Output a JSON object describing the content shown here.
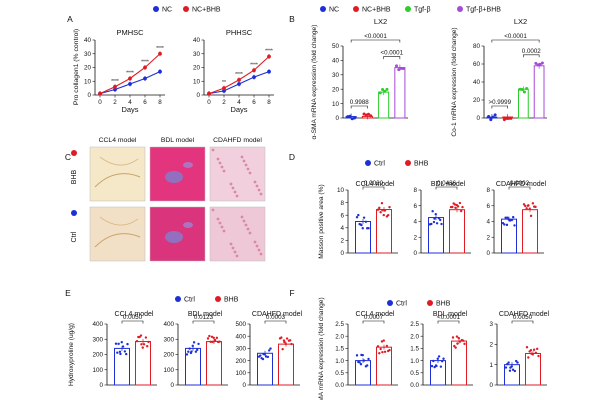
{
  "colors": {
    "blue": "#1d2fd6",
    "red": "#e01b24",
    "green": "#2ecc2e",
    "purple": "#a64bd6",
    "text": "#111111"
  },
  "chart_data": [
    {
      "panel": "A",
      "type": "line",
      "legend": [
        "NC",
        "NC+BHB"
      ],
      "charts": [
        {
          "title": "PMHSC",
          "ylabel": "Pro collagen1 (% control)",
          "xlabel": "Days",
          "x": [
            0,
            2,
            4,
            6,
            8
          ],
          "xticks": [
            0,
            2,
            4,
            6,
            8
          ],
          "ylim": [
            0,
            40
          ],
          "yticks": [
            0,
            10,
            20,
            30,
            40
          ],
          "series": [
            {
              "name": "NC",
              "values": [
                1,
                4,
                8,
                12,
                17
              ]
            },
            {
              "name": "NC+BHB",
              "values": [
                1,
                6,
                12,
                20,
                30
              ]
            }
          ],
          "annotations": [
            "****",
            "****",
            "****",
            "****"
          ]
        },
        {
          "title": "PHHSC",
          "ylabel": "",
          "xlabel": "Days",
          "x": [
            0,
            2,
            4,
            6,
            8
          ],
          "xticks": [
            0,
            2,
            4,
            6,
            8
          ],
          "ylim": [
            0,
            40
          ],
          "yticks": [
            0,
            10,
            20,
            30,
            40
          ],
          "series": [
            {
              "name": "NC",
              "values": [
                1,
                3,
                8,
                13,
                17
              ]
            },
            {
              "name": "NC+BHB",
              "values": [
                1,
                5,
                11,
                18,
                28
              ]
            }
          ],
          "annotations": [
            "**",
            "****",
            "****",
            "****"
          ]
        }
      ]
    },
    {
      "panel": "B",
      "type": "bar",
      "super_title": "LX2",
      "legend": [
        "NC",
        "NC+BHB",
        "Tgf-β",
        "Tgf-β+BHB"
      ],
      "charts": [
        {
          "title": "LX2",
          "ylabel": "α-SMA mRNA expression (fold change)",
          "ylim": [
            0,
            50
          ],
          "yticks": [
            0,
            10,
            20,
            30,
            40,
            50
          ],
          "categories": [
            "NC",
            "NC+BHB",
            "Tgf-β",
            "Tgf-β+BHB"
          ],
          "values": [
            1.0,
            1.1,
            18,
            35
          ],
          "pvalues": [
            "<0.0001",
            "0.9988",
            "<0.0001"
          ]
        },
        {
          "title": "LX2",
          "ylabel": "Co-1 mRNA expression (fold change)",
          "ylim": [
            0,
            80
          ],
          "yticks": [
            0,
            20,
            40,
            60,
            80
          ],
          "categories": [
            "NC",
            "NC+BHB",
            "Tgf-β",
            "Tgf-β+BHB"
          ],
          "values": [
            1.0,
            1.1,
            32,
            58
          ],
          "pvalues": [
            "<0.0001",
            ">0.9999",
            "0.0002"
          ]
        }
      ]
    },
    {
      "panel": "D",
      "type": "bar",
      "legend": [
        "Ctrl",
        "BHB"
      ],
      "ylabel": "Masson positive area (%)",
      "charts": [
        {
          "title": "CCL4 model",
          "ylim": [
            0,
            10
          ],
          "yticks": [
            0,
            2,
            4,
            6,
            8,
            10
          ],
          "categories": [
            "Ctrl",
            "BHB"
          ],
          "values": [
            5.0,
            6.9
          ],
          "pvalue": "0.0020"
        },
        {
          "title": "BDL model",
          "ylim": [
            0,
            8
          ],
          "yticks": [
            0,
            2,
            4,
            6,
            8
          ],
          "categories": [
            "Ctrl",
            "BHB"
          ],
          "values": [
            4.5,
            5.5
          ],
          "pvalue": "0.0436"
        },
        {
          "title": "CDAHFD model",
          "ylim": [
            0,
            8
          ],
          "yticks": [
            0,
            2,
            4,
            6,
            8
          ],
          "categories": [
            "Ctrl",
            "BHB"
          ],
          "values": [
            4.3,
            5.5
          ],
          "pvalue": "0.0002"
        }
      ]
    },
    {
      "panel": "E",
      "type": "bar",
      "legend": [
        "Ctrl",
        "BHB"
      ],
      "ylabel": "Hydroxyproline (ug/g)",
      "charts": [
        {
          "title": "CCL4 model",
          "ylim": [
            0,
            400
          ],
          "yticks": [
            0,
            100,
            200,
            300,
            400
          ],
          "categories": [
            "Ctrl",
            "BHB"
          ],
          "values": [
            240,
            285
          ],
          "pvalue": "0.0050"
        },
        {
          "title": "BDL model",
          "ylim": [
            0,
            400
          ],
          "yticks": [
            0,
            100,
            200,
            300,
            400
          ],
          "categories": [
            "Ctrl",
            "BHB"
          ],
          "values": [
            240,
            285
          ],
          "pvalue": "0.0123"
        },
        {
          "title": "CDAHFD model",
          "ylim": [
            0,
            500
          ],
          "yticks": [
            0,
            100,
            200,
            300,
            400,
            500
          ],
          "categories": [
            "Ctrl",
            "BHB"
          ],
          "values": [
            260,
            335
          ],
          "pvalue": "0.0003"
        }
      ]
    },
    {
      "panel": "F",
      "type": "bar",
      "legend": [
        "Ctrl",
        "BHB"
      ],
      "ylabel": "c-SMA mRNA expression (fold change)",
      "charts": [
        {
          "title": "CCL4 model",
          "ylim": [
            0,
            2.5
          ],
          "yticks": [
            0.0,
            0.5,
            1.0,
            1.5,
            2.0,
            2.5
          ],
          "categories": [
            "Ctrl",
            "BHB"
          ],
          "values": [
            1.0,
            1.55
          ],
          "pvalue": "0.0007"
        },
        {
          "title": "BDL model",
          "ylim": [
            0,
            2.5
          ],
          "yticks": [
            0.0,
            0.5,
            1.0,
            1.5,
            2.0,
            2.5
          ],
          "categories": [
            "Ctrl",
            "BHB"
          ],
          "values": [
            1.0,
            1.8
          ],
          "pvalue": "<0.0001"
        },
        {
          "title": "CDAHFD model",
          "ylim": [
            0,
            3
          ],
          "yticks": [
            0,
            1,
            2,
            3
          ],
          "categories": [
            "Ctrl",
            "BHB"
          ],
          "values": [
            1.0,
            1.55
          ],
          "pvalue": "0.0050"
        }
      ]
    }
  ],
  "panel_labels": {
    "a": "A",
    "b": "B",
    "c": "C",
    "d": "D",
    "e": "E",
    "f": "F"
  },
  "histology": {
    "columns": [
      "CCL4 model",
      "BDL model",
      "CDAHFD model"
    ],
    "rows": [
      "BHB",
      "Ctrl"
    ]
  }
}
